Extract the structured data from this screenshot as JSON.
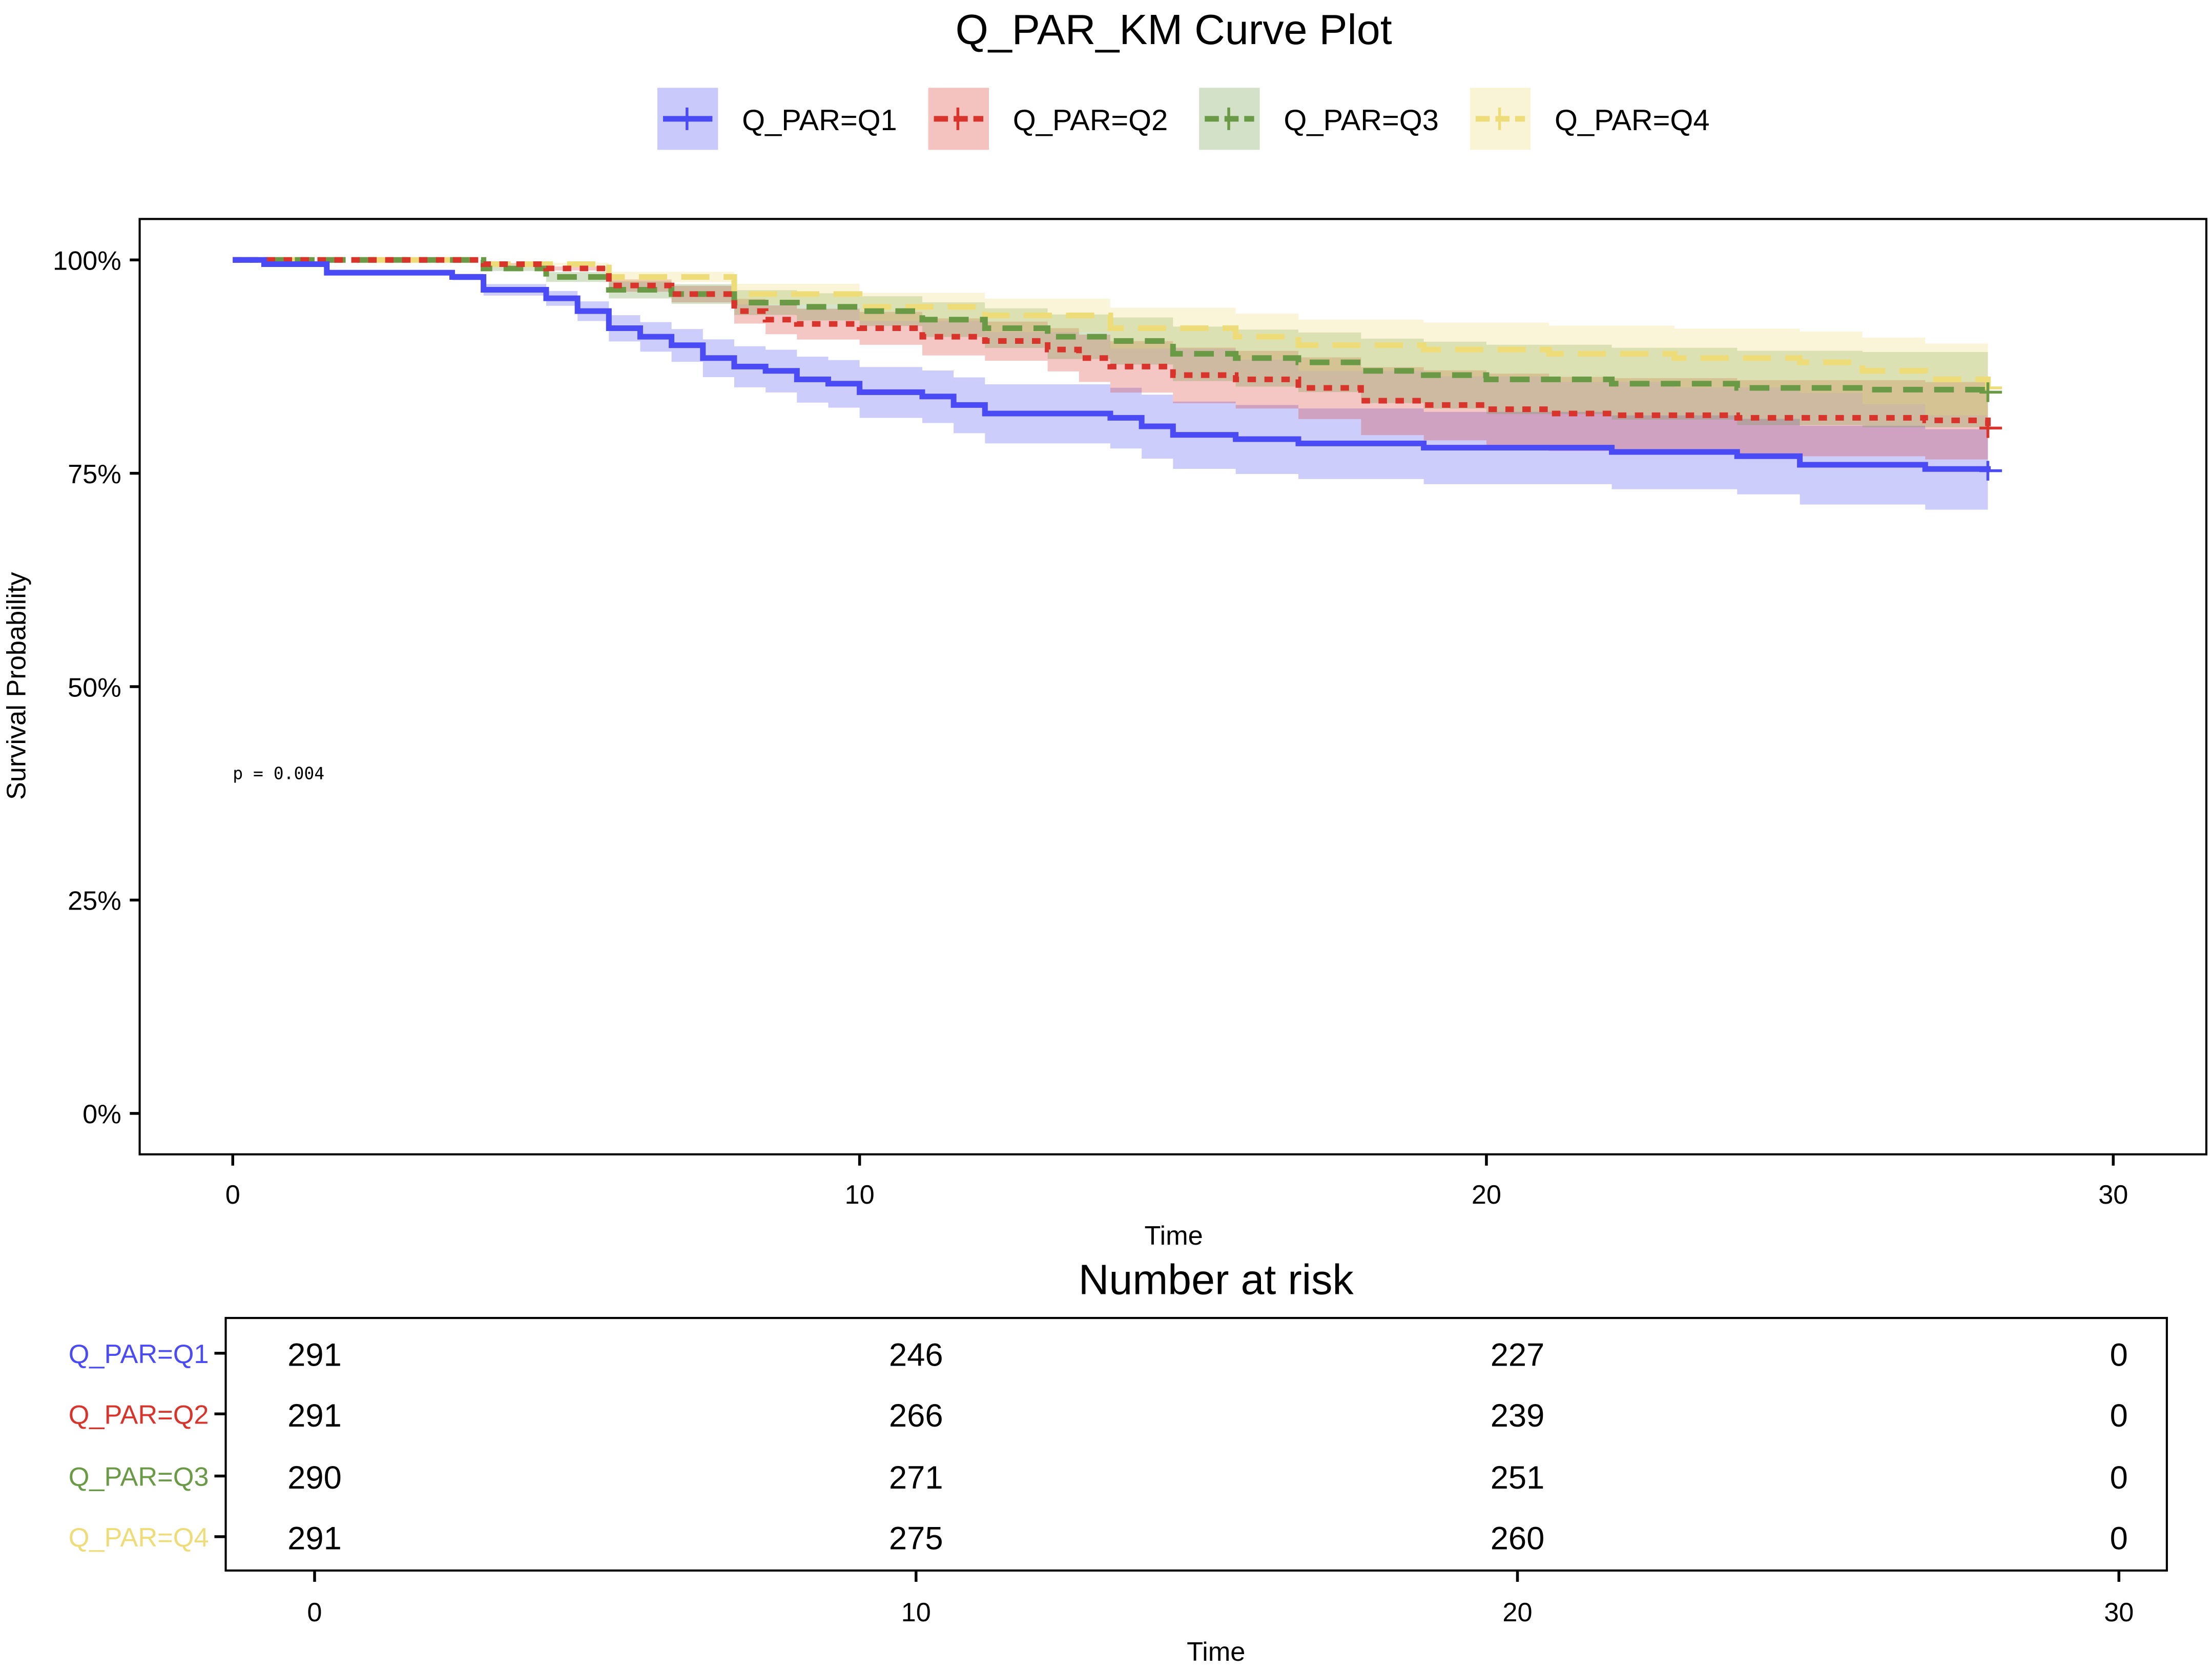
{
  "chart_data": {
    "type": "line",
    "subtype": "kaplan-meier",
    "title": "Q_PAR_KM Curve Plot",
    "xlabel": "Time",
    "ylabel": "Survival Probability",
    "xlim": [
      0,
      30
    ],
    "ylim": [
      0,
      100
    ],
    "x_ticks": [
      "0",
      "10",
      "20",
      "30"
    ],
    "x_tick_values": [
      0,
      10,
      20,
      30
    ],
    "y_ticks": [
      "0%",
      "25%",
      "50%",
      "75%",
      "100%"
    ],
    "y_tick_values": [
      0,
      25,
      50,
      75,
      100
    ],
    "annotation": "p = 0.004",
    "legend_position": "top",
    "series": [
      {
        "name": "Q_PAR=Q1",
        "color": "#4b4bf5",
        "dash": "solid",
        "points": [
          [
            0,
            100
          ],
          [
            0.5,
            99.5
          ],
          [
            1.5,
            98.5
          ],
          [
            3.5,
            98
          ],
          [
            4,
            96.5
          ],
          [
            5,
            95.5
          ],
          [
            5.5,
            94
          ],
          [
            6,
            92
          ],
          [
            6.5,
            91
          ],
          [
            7,
            90
          ],
          [
            7.5,
            88.5
          ],
          [
            8,
            87.5
          ],
          [
            8.5,
            87
          ],
          [
            9,
            86
          ],
          [
            9.5,
            85.5
          ],
          [
            10,
            84.5
          ],
          [
            11,
            84
          ],
          [
            11.5,
            83
          ],
          [
            12,
            82
          ],
          [
            13,
            82
          ],
          [
            14,
            81.5
          ],
          [
            14.5,
            80.5
          ],
          [
            15,
            79.5
          ],
          [
            16,
            79
          ],
          [
            17,
            78.5
          ],
          [
            19,
            78
          ],
          [
            21,
            78
          ],
          [
            22,
            77.5
          ],
          [
            24,
            77
          ],
          [
            25,
            76
          ],
          [
            27,
            75.5
          ],
          [
            28,
            75.3
          ]
        ],
        "ci_end": [
          70.5,
          80
        ]
      },
      {
        "name": "Q_PAR=Q2",
        "color": "#d9342b",
        "dash": "dotted",
        "points": [
          [
            0,
            100
          ],
          [
            3.5,
            100
          ],
          [
            4,
            99.5
          ],
          [
            5,
            99
          ],
          [
            6,
            97
          ],
          [
            7,
            96
          ],
          [
            8,
            94
          ],
          [
            8.5,
            93
          ],
          [
            9,
            92.5
          ],
          [
            10,
            92
          ],
          [
            11,
            91
          ],
          [
            12,
            90.5
          ],
          [
            13,
            89.5
          ],
          [
            13.5,
            88.5
          ],
          [
            14,
            87.5
          ],
          [
            15,
            86.5
          ],
          [
            16,
            86
          ],
          [
            17,
            85
          ],
          [
            18,
            83.5
          ],
          [
            19,
            83
          ],
          [
            20,
            82.5
          ],
          [
            21,
            82
          ],
          [
            22,
            81.8
          ],
          [
            24,
            81.5
          ],
          [
            27,
            81.2
          ],
          [
            28,
            80.3
          ]
        ],
        "ci_end": [
          75.5,
          85
        ]
      },
      {
        "name": "Q_PAR=Q3",
        "color": "#6a9a45",
        "dash": "dashed",
        "points": [
          [
            0,
            100
          ],
          [
            3.5,
            100
          ],
          [
            4,
            99
          ],
          [
            5,
            98
          ],
          [
            6,
            96.5
          ],
          [
            7,
            96
          ],
          [
            8,
            95
          ],
          [
            9,
            94.5
          ],
          [
            10,
            94
          ],
          [
            11,
            93
          ],
          [
            12,
            92
          ],
          [
            13,
            91
          ],
          [
            14,
            90.5
          ],
          [
            15,
            89
          ],
          [
            16,
            88.5
          ],
          [
            17,
            88
          ],
          [
            18,
            87
          ],
          [
            19,
            86.5
          ],
          [
            20,
            86
          ],
          [
            22,
            85.5
          ],
          [
            24,
            85
          ],
          [
            26,
            84.8
          ],
          [
            28,
            84.5
          ]
        ],
        "ci_end": [
          80,
          89
        ]
      },
      {
        "name": "Q_PAR=Q4",
        "color": "#eedc78",
        "dash": "longdash",
        "points": [
          [
            0,
            100
          ],
          [
            4,
            99.5
          ],
          [
            6,
            98
          ],
          [
            8,
            96
          ],
          [
            10,
            94.5
          ],
          [
            12,
            93.5
          ],
          [
            14,
            92
          ],
          [
            16,
            91
          ],
          [
            17,
            90
          ],
          [
            19,
            89.5
          ],
          [
            21,
            89
          ],
          [
            23,
            88.5
          ],
          [
            25,
            88
          ],
          [
            26,
            87
          ],
          [
            27,
            86
          ],
          [
            28,
            85
          ]
        ],
        "ci_end": [
          80.5,
          89.5
        ]
      }
    ],
    "risk_table": {
      "title": "Number at risk",
      "xlabel": "Time",
      "times": [
        0,
        10,
        20,
        30
      ],
      "time_labels": [
        "0",
        "10",
        "20",
        "30"
      ],
      "rows": [
        {
          "label": "Q_PAR=Q1",
          "values": [
            "291",
            "246",
            "227",
            "0"
          ]
        },
        {
          "label": "Q_PAR=Q2",
          "values": [
            "291",
            "266",
            "239",
            "0"
          ]
        },
        {
          "label": "Q_PAR=Q3",
          "values": [
            "290",
            "271",
            "251",
            "0"
          ]
        },
        {
          "label": "Q_PAR=Q4",
          "values": [
            "291",
            "275",
            "260",
            "0"
          ]
        }
      ]
    }
  }
}
